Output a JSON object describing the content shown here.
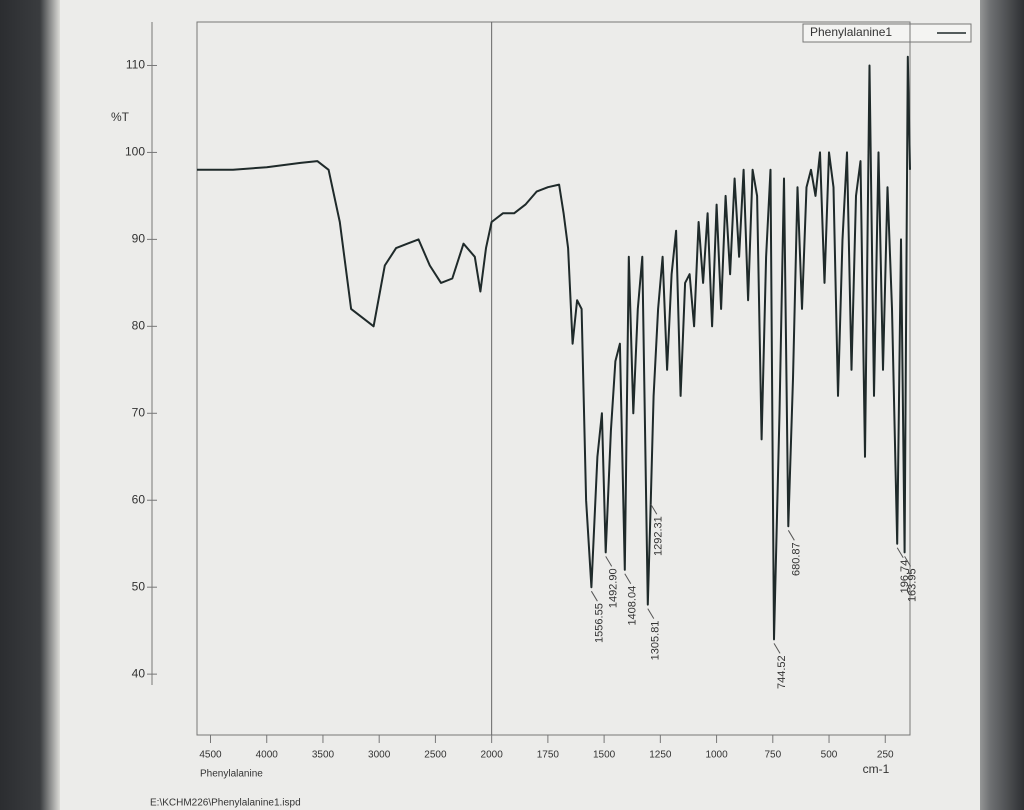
{
  "chart_data": {
    "type": "line",
    "legend": "Phenylalanine1",
    "legend_position": "top-right",
    "ylabel": "%T",
    "xlabel": "cm-1",
    "subtitle": "Phenylalanine",
    "file": "E:\\KCHM226\\Phenylalanine1.ispd",
    "color": "#1f2a2a",
    "cursor_x": 2000,
    "xlim": [
      4620,
      140
    ],
    "xticks": [
      4500,
      4000,
      3500,
      3000,
      2500,
      2000,
      1750,
      1500,
      1250,
      1000,
      750,
      500,
      250
    ],
    "ylim": [
      33,
      115
    ],
    "yticks": [
      40,
      50,
      60,
      70,
      80,
      90,
      100,
      110
    ],
    "x": [
      4620,
      4500,
      4300,
      4000,
      3700,
      3550,
      3450,
      3350,
      3250,
      3150,
      3050,
      2950,
      2850,
      2750,
      2650,
      2550,
      2450,
      2350,
      2250,
      2150,
      2100,
      2050,
      2000,
      1950,
      1900,
      1850,
      1800,
      1750,
      1700,
      1680,
      1660,
      1640,
      1620,
      1600,
      1580,
      1556.55,
      1530,
      1510,
      1492.9,
      1470,
      1450,
      1430,
      1408.04,
      1390,
      1370,
      1350,
      1330,
      1305.81,
      1292.31,
      1280,
      1260,
      1240,
      1220,
      1200,
      1180,
      1160,
      1140,
      1120,
      1100,
      1080,
      1060,
      1040,
      1020,
      1000,
      980,
      960,
      940,
      920,
      900,
      880,
      860,
      840,
      820,
      800,
      780,
      760,
      744.52,
      720,
      700,
      680.87,
      660,
      640,
      620,
      600,
      580,
      560,
      540,
      520,
      500,
      480,
      460,
      440,
      420,
      400,
      380,
      360,
      340,
      320,
      300,
      280,
      260,
      240,
      220,
      196.74,
      180,
      163.95,
      150,
      140
    ],
    "values": [
      98,
      98,
      98,
      98.3,
      98.8,
      99,
      98,
      92,
      82,
      81,
      80,
      87,
      89,
      89.5,
      90,
      87,
      85,
      85.5,
      89.5,
      88,
      84,
      89,
      92,
      93,
      93,
      94,
      95.5,
      96,
      96.3,
      93,
      89,
      78,
      83,
      82,
      60,
      50,
      65,
      70,
      54,
      68,
      76,
      78,
      52,
      88,
      70,
      82,
      88,
      48,
      60,
      72,
      82,
      88,
      75,
      86,
      91,
      72,
      85,
      86,
      80,
      92,
      85,
      93,
      80,
      94,
      82,
      95,
      86,
      97,
      88,
      98,
      83,
      98,
      95,
      67,
      88,
      98,
      44,
      70,
      97,
      57,
      74,
      96,
      82,
      96,
      98,
      95,
      100,
      85,
      100,
      96,
      72,
      90,
      100,
      75,
      95,
      99,
      65,
      110,
      72,
      100,
      75,
      96,
      82,
      55,
      90,
      54,
      111,
      98
    ],
    "peaks": [
      {
        "value": 1556.55,
        "label": "1556.55"
      },
      {
        "value": 1492.9,
        "label": "1492.90"
      },
      {
        "value": 1408.04,
        "label": "1408.04"
      },
      {
        "value": 1305.81,
        "label": "1305.81"
      },
      {
        "value": 1292.31,
        "label": "1292.31"
      },
      {
        "value": 744.52,
        "label": "744.52"
      },
      {
        "value": 680.87,
        "label": "680.87"
      },
      {
        "value": 196.74,
        "label": "196.74"
      },
      {
        "value": 163.95,
        "label": "163.95"
      }
    ]
  }
}
